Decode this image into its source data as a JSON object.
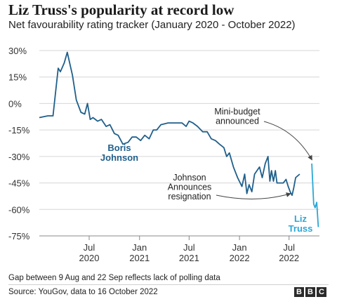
{
  "header": {
    "title": "Liz Truss's popularity at record low",
    "subtitle": "Net favourability rating tracker (January 2020 - October 2022)"
  },
  "footer": {
    "note": "Gap between 9 Aug and 22 Sep reflects lack of polling data",
    "source": "Source: YouGov, data to 16 October 2022",
    "logo_letters": [
      "B",
      "B",
      "C"
    ]
  },
  "colors": {
    "johnson": "#1f5f8b",
    "truss": "#2aa7d6",
    "grid": "#d6d6d6",
    "annotation": "#444444"
  },
  "chart_data": {
    "type": "line",
    "title": "Liz Truss's popularity at record low",
    "subtitle": "Net favourability rating tracker (January 2020 - October 2022)",
    "ylim": [
      -75,
      30
    ],
    "yticks": [
      30,
      15,
      0,
      -15,
      -30,
      -45,
      -60,
      -75
    ],
    "ytick_labels": [
      "30%",
      "15%",
      "0%",
      "-15%",
      "-30%",
      "-45%",
      "-60%",
      "-75%"
    ],
    "xlim": [
      "2020-01-01",
      "2022-10-20"
    ],
    "xticks": [
      {
        "date": "2020-07-01",
        "label": [
          "Jul",
          "2020"
        ]
      },
      {
        "date": "2021-01-01",
        "label": [
          "Jan",
          "2021"
        ]
      },
      {
        "date": "2021-07-01",
        "label": [
          "Jul",
          "2021"
        ]
      },
      {
        "date": "2022-01-01",
        "label": [
          "Jan",
          "2022"
        ]
      },
      {
        "date": "2022-07-01",
        "label": [
          "Jul",
          "2022"
        ]
      }
    ],
    "series": [
      {
        "name": "Boris Johnson",
        "label_lines": [
          "Boris",
          "Johnson"
        ],
        "color": "#1f5f8b",
        "points": [
          [
            "2020-01-01",
            -8
          ],
          [
            "2020-02-01",
            -7
          ],
          [
            "2020-02-20",
            -7
          ],
          [
            "2020-03-10",
            20
          ],
          [
            "2020-03-18",
            18
          ],
          [
            "2020-04-01",
            23
          ],
          [
            "2020-04-12",
            29
          ],
          [
            "2020-05-01",
            16
          ],
          [
            "2020-05-15",
            2
          ],
          [
            "2020-06-01",
            -5
          ],
          [
            "2020-06-15",
            -6
          ],
          [
            "2020-06-25",
            0
          ],
          [
            "2020-07-05",
            -9
          ],
          [
            "2020-07-15",
            -8
          ],
          [
            "2020-08-01",
            -10
          ],
          [
            "2020-08-15",
            -9
          ],
          [
            "2020-09-01",
            -13
          ],
          [
            "2020-09-15",
            -12
          ],
          [
            "2020-10-01",
            -17
          ],
          [
            "2020-10-15",
            -18
          ],
          [
            "2020-11-01",
            -23
          ],
          [
            "2020-11-20",
            -22
          ],
          [
            "2020-12-05",
            -19
          ],
          [
            "2020-12-20",
            -19
          ],
          [
            "2021-01-05",
            -21
          ],
          [
            "2021-01-20",
            -18
          ],
          [
            "2021-02-05",
            -20
          ],
          [
            "2021-02-20",
            -15
          ],
          [
            "2021-03-05",
            -15
          ],
          [
            "2021-03-20",
            -12
          ],
          [
            "2021-04-15",
            -11
          ],
          [
            "2021-05-15",
            -11
          ],
          [
            "2021-06-05",
            -11
          ],
          [
            "2021-06-20",
            -13
          ],
          [
            "2021-07-01",
            -10
          ],
          [
            "2021-07-15",
            -11
          ],
          [
            "2021-08-01",
            -13
          ],
          [
            "2021-08-20",
            -16
          ],
          [
            "2021-09-05",
            -16
          ],
          [
            "2021-09-20",
            -20
          ],
          [
            "2021-10-05",
            -21
          ],
          [
            "2021-10-20",
            -23
          ],
          [
            "2021-11-05",
            -25
          ],
          [
            "2021-11-15",
            -30
          ],
          [
            "2021-11-25",
            -28
          ],
          [
            "2021-12-10",
            -36
          ],
          [
            "2021-12-25",
            -42
          ],
          [
            "2022-01-10",
            -47
          ],
          [
            "2022-01-20",
            -40
          ],
          [
            "2022-01-28",
            -51
          ],
          [
            "2022-02-05",
            -46
          ],
          [
            "2022-02-15",
            -50
          ],
          [
            "2022-02-25",
            -40
          ],
          [
            "2022-03-15",
            -36
          ],
          [
            "2022-03-25",
            -42
          ],
          [
            "2022-04-05",
            -34
          ],
          [
            "2022-04-15",
            -30
          ],
          [
            "2022-04-22",
            -44
          ],
          [
            "2022-04-28",
            -38
          ],
          [
            "2022-05-05",
            -44
          ],
          [
            "2022-05-12",
            -38
          ],
          [
            "2022-05-18",
            -45
          ],
          [
            "2022-06-01",
            -45
          ],
          [
            "2022-06-10",
            -45
          ],
          [
            "2022-06-20",
            -43
          ],
          [
            "2022-06-28",
            -47
          ],
          [
            "2022-07-05",
            -50
          ],
          [
            "2022-07-12",
            -52
          ],
          [
            "2022-07-18",
            -48
          ],
          [
            "2022-07-25",
            -42
          ],
          [
            "2022-08-09",
            -40
          ]
        ]
      },
      {
        "name": "Liz Truss",
        "label_lines": [
          "Liz",
          "Truss"
        ],
        "color": "#2aa7d6",
        "points": [
          [
            "2022-09-22",
            -34
          ],
          [
            "2022-09-29",
            -57
          ],
          [
            "2022-10-04",
            -59
          ],
          [
            "2022-10-10",
            -56
          ],
          [
            "2022-10-16",
            -70
          ]
        ]
      }
    ],
    "annotations": [
      {
        "id": "mini-budget",
        "lines": [
          "Mini-budget",
          "announced"
        ],
        "target": [
          "2022-09-23",
          -32
        ]
      },
      {
        "id": "johnson-resignation",
        "lines": [
          "Johnson",
          "Announces",
          "resignation"
        ],
        "target": [
          "2022-07-07",
          -51
        ]
      }
    ],
    "grid": true,
    "legend": "none (direct labels)"
  }
}
